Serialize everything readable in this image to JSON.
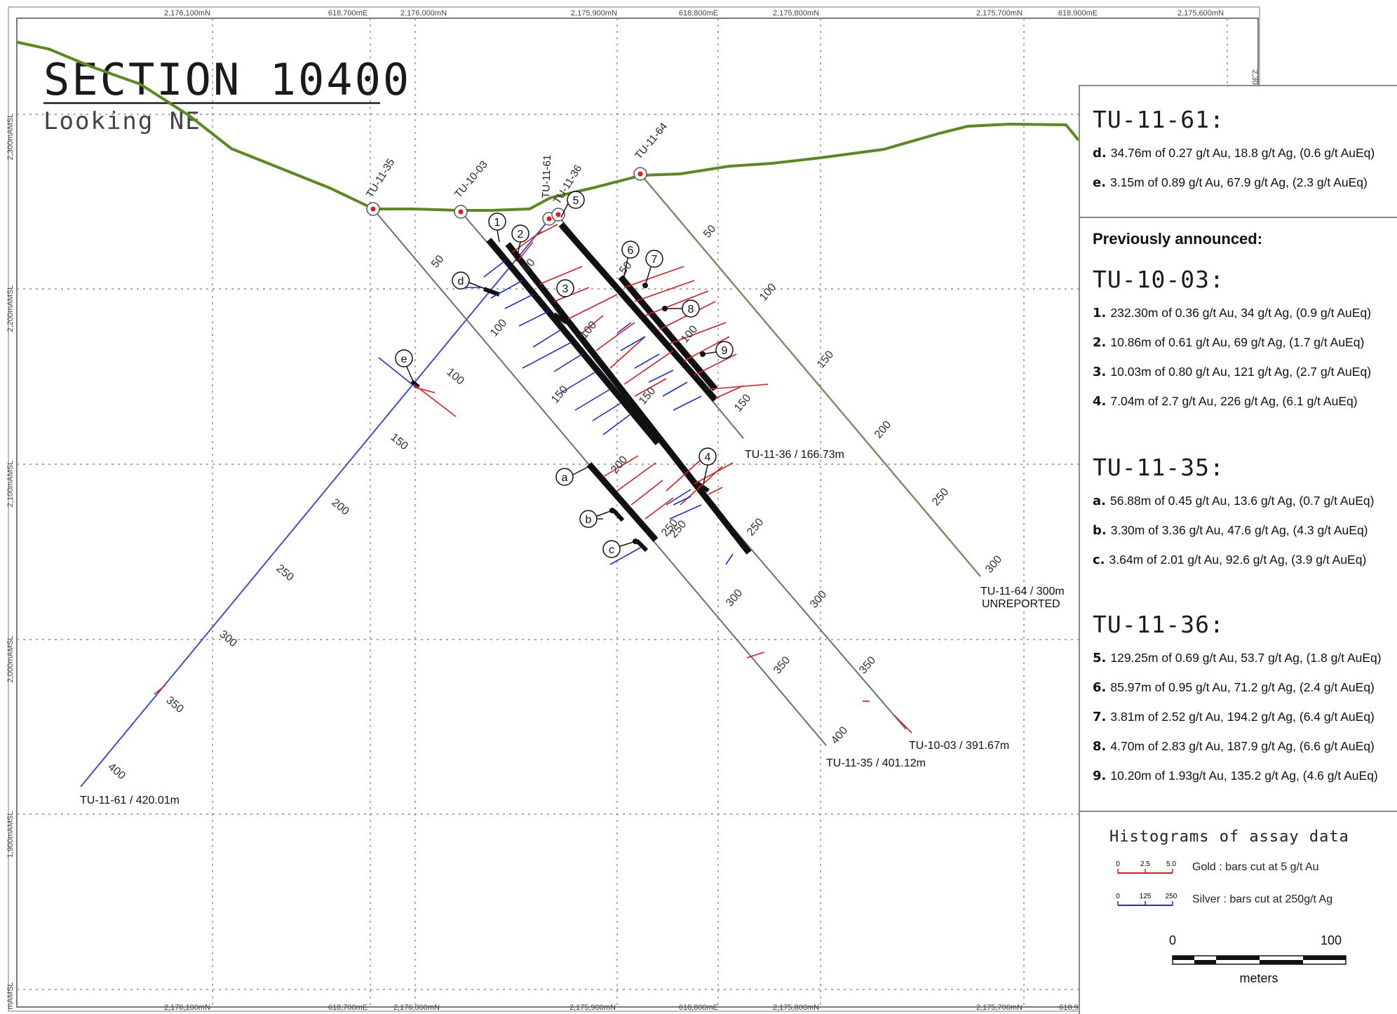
{
  "title": "SECTION 10400",
  "subtitle": "Looking NE",
  "grid_top_labels": [
    "2,176,100mN",
    "618,700mE",
    "2,176,000mN",
    "2,175,900mN",
    "618,800mE",
    "2,175,800mN",
    "2,175,700mN",
    "618,900mE",
    "2,175,600mN"
  ],
  "grid_bottom_labels": [
    "2,176,100mN",
    "618,700mE",
    "2,176,000mN",
    "2,175,900mN",
    "618,800mE",
    "2,175,800mN",
    "2,175,700mN",
    "618,9"
  ],
  "grid_left_labels": [
    "2,300mAMSL",
    "2,200mAMSL",
    "2,100mAMSL",
    "2,000mAMSL",
    "1,900mAMSL",
    "mAMSL"
  ],
  "grid_right_label": "2,30",
  "collars": [
    "TU-11-35",
    "TU-10-03",
    "TU-11-61",
    "TU-11-36",
    "TU-11-64"
  ],
  "hole_ends": {
    "h61": "TU-11-61 / 420.01m",
    "h36": "TU-11-36 / 166.73m",
    "h64a": "TU-11-64 / 300m",
    "h64b": "UNREPORTED",
    "h03": "TU-10-03 / 391.67m",
    "h35": "TU-11-35 / 401.12m"
  },
  "depth_ticks": {
    "h61": [
      "100",
      "150",
      "200",
      "250",
      "300",
      "350",
      "400"
    ],
    "h35": [
      "50",
      "100",
      "150",
      "200",
      "250",
      "300",
      "350",
      "400"
    ],
    "h03": [
      "50",
      "100",
      "150",
      "200",
      "250",
      "300",
      "350"
    ],
    "h36": [
      "50",
      "100",
      "150"
    ],
    "h64": [
      "50",
      "100",
      "150",
      "200",
      "250",
      "300"
    ]
  },
  "callouts": [
    "1",
    "2",
    "3",
    "4",
    "5",
    "6",
    "7",
    "8",
    "9",
    "a",
    "b",
    "c",
    "d",
    "e"
  ],
  "legend": {
    "tu1161": {
      "title": "TU-11-61:",
      "rows": [
        {
          "k": "d.",
          "t": "34.76m of 0.27 g/t Au, 18.8 g/t Ag, (0.6 g/t AuEq)"
        },
        {
          "k": "e.",
          "t": "3.15m of 0.89 g/t Au, 67.9 g/t Ag, (2.3 g/t AuEq)"
        }
      ]
    },
    "previously": "Previously announced:",
    "tu1003": {
      "title": "TU-10-03:",
      "rows": [
        {
          "k": "1.",
          "t": "232.30m of 0.36  g/t Au, 34 g/t Ag, (0.9 g/t AuEq)"
        },
        {
          "k": "2.",
          "t": "10.86m of 0.61 g/t Au, 69 g/t Ag, (1.7 g/t AuEq)"
        },
        {
          "k": "3.",
          "t": "10.03m of 0.80 g/t Au, 121 g/t Ag, (2.7 g/t AuEq)"
        },
        {
          "k": "4.",
          "t": "7.04m of 2.7 g/t Au, 226 g/t Ag, (6.1 g/t AuEq)"
        }
      ]
    },
    "tu1135": {
      "title": "TU-11-35:",
      "rows": [
        {
          "k": "a.",
          "t": "56.88m of 0.45 g/t Au, 13.6 g/t Ag, (0.7 g/t AuEq)"
        },
        {
          "k": "b.",
          "t": "3.30m of 3.36 g/t Au, 47.6 g/t Ag,  (4.3 g/t AuEq)"
        },
        {
          "k": "c.",
          "t": "3.64m of 2.01 g/t Au, 92.6 g/t Ag, (3.9 g/t AuEq)"
        }
      ]
    },
    "tu1136": {
      "title": "TU-11-36:",
      "rows": [
        {
          "k": "5.",
          "t": "129.25m of 0.69 g/t Au, 53.7 g/t Ag, (1.8 g/t AuEq)"
        },
        {
          "k": "6.",
          "t": "85.97m of 0.95 g/t Au, 71.2 g/t Ag, (2.4 g/t AuEq)"
        },
        {
          "k": "7.",
          "t": "3.81m of 2.52 g/t Au, 194.2 g/t Ag, (6.4 g/t AuEq)"
        },
        {
          "k": "8.",
          "t": "4.70m of 2.83 g/t Au, 187.9 g/t Ag, (6.6 g/t AuEq)"
        },
        {
          "k": "9.",
          "t": "10.20m of 1.93g/t Au, 135.2 g/t Ag, (4.6 g/t AuEq)"
        }
      ]
    },
    "histograms": {
      "title": "Histograms of assay data",
      "gold_scale": [
        "0",
        "2.5",
        "5.0"
      ],
      "gold_label": "Gold :  bars cut at 5 g/t Au",
      "silver_scale": [
        "0",
        "125",
        "250"
      ],
      "silver_label": "Silver : bars cut at 250g/t Ag"
    },
    "scale": {
      "min": "0",
      "max": "100",
      "unit": "meters"
    }
  },
  "colors": {
    "topography": "#5a8a1e",
    "gold": "#e01b1b",
    "silver": "#1b2fd6",
    "drill": "#111111",
    "tail": "#6e6e6e",
    "hole64": "#7d8d62"
  }
}
